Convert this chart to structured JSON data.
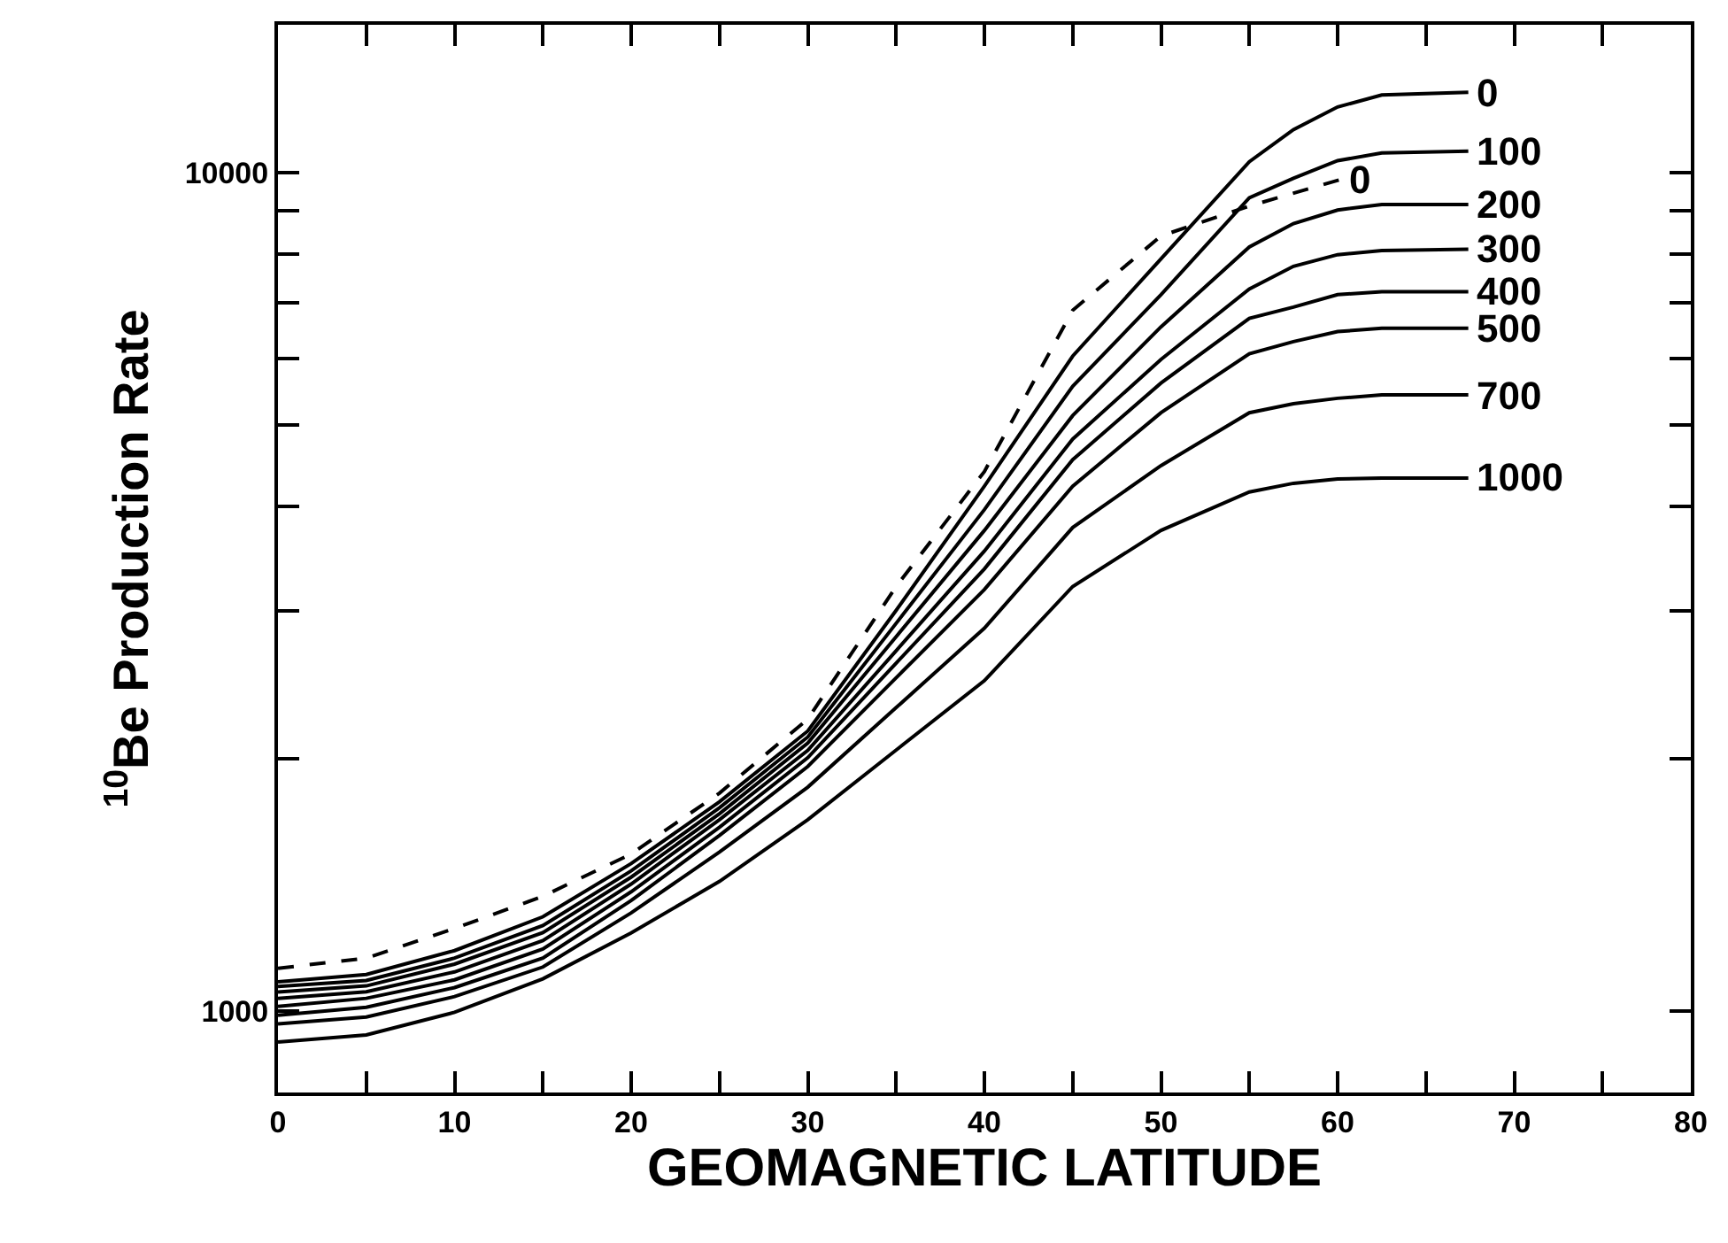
{
  "chart_data": {
    "type": "line",
    "xlabel": "GEOMAGNETIC LATITUDE",
    "ylabel": "$^{10}$Be Production Rate",
    "log": "y",
    "grid": false,
    "legend": "right",
    "marker": "none",
    "x": [
      0,
      5,
      10,
      15,
      20,
      25,
      30,
      35,
      40,
      45,
      50,
      55,
      57.5,
      60,
      62.5,
      67.4
    ],
    "xlim": [
      0,
      80
    ],
    "xticks": [
      0,
      {
        "value": 5,
        "label": null
      },
      10,
      {
        "value": 15,
        "label": null
      },
      20,
      {
        "value": 25,
        "label": null
      },
      30,
      {
        "value": 35,
        "label": null
      },
      40,
      {
        "value": 45,
        "label": null
      },
      50,
      {
        "value": 55,
        "label": null
      },
      60,
      {
        "value": 65,
        "label": null
      },
      70,
      {
        "value": 75,
        "label": null
      },
      80
    ],
    "ylim": [
      800,
      15000
    ],
    "yticks": [
      1000,
      {
        "value": 2000,
        "label": null
      },
      {
        "value": 3000,
        "label": null
      },
      {
        "value": 4000,
        "label": null
      },
      {
        "value": 5000,
        "label": null
      },
      {
        "value": 6000,
        "label": null
      },
      {
        "value": 7000,
        "label": null
      },
      {
        "value": 8000,
        "label": null
      },
      {
        "value": 9000,
        "label": null
      },
      10000
    ],
    "series": [
      {
        "name": "0",
        "color": "#000000",
        "line_style": "solid",
        "values": [
          1084,
          1106,
          1181,
          1296,
          1500,
          1777,
          2158,
          3005,
          4227,
          6040,
          7890,
          10300,
          11250,
          11970,
          12370,
          12460
        ]
      },
      {
        "name": "100",
        "color": "#000000",
        "line_style": "solid",
        "values": [
          1070,
          1088,
          1157,
          1265,
          1470,
          1748,
          2123,
          2900,
          3963,
          5560,
          7150,
          9330,
          9840,
          10330,
          10550,
          10600
        ]
      },
      {
        "name": "200",
        "color": "#000000",
        "line_style": "solid",
        "values": [
          1054,
          1072,
          1138,
          1241,
          1445,
          1720,
          2088,
          2796,
          3743,
          5130,
          6546,
          8150,
          8690,
          9020,
          9160,
          9160
        ]
      },
      {
        "name": "300",
        "color": "#000000",
        "line_style": "solid",
        "values": [
          1036,
          1055,
          1114,
          1214,
          1418,
          1692,
          2046,
          2690,
          3537,
          4810,
          5985,
          7260,
          7730,
          7980,
          8070,
          8100
        ]
      },
      {
        "name": "400",
        "color": "#000000",
        "line_style": "solid",
        "values": [
          1013,
          1036,
          1090,
          1186,
          1388,
          1657,
          2006,
          2600,
          3368,
          4545,
          5610,
          6700,
          6910,
          7150,
          7210,
          7210
        ]
      },
      {
        "name": "500",
        "color": "#000000",
        "line_style": "solid",
        "values": [
          989,
          1011,
          1067,
          1157,
          1355,
          1620,
          1958,
          2497,
          3183,
          4227,
          5172,
          6080,
          6285,
          6460,
          6520,
          6520
        ]
      },
      {
        "name": "700",
        "color": "#000000",
        "line_style": "solid",
        "values": [
          966,
          984,
          1041,
          1129,
          1310,
          1548,
          1850,
          2301,
          2862,
          3773,
          4472,
          5170,
          5300,
          5380,
          5430,
          5430
        ]
      },
      {
        "name": "1000",
        "color": "#000000",
        "line_style": "solid",
        "values": [
          919,
          937,
          997,
          1093,
          1240,
          1428,
          1692,
          2048,
          2478,
          3209,
          3743,
          4160,
          4260,
          4310,
          4322,
          4322
        ]
      },
      {
        "name": "0",
        "color": "#000000",
        "line_style": "dashed",
        "x": [
          0,
          5,
          10,
          15,
          20,
          25,
          30,
          35,
          40,
          45,
          50,
          55,
          60.1
        ],
        "values": [
          1125,
          1157,
          1255,
          1371,
          1540,
          1820,
          2230,
          3209,
          4400,
          6850,
          8400,
          9120,
          9800
        ]
      }
    ]
  }
}
